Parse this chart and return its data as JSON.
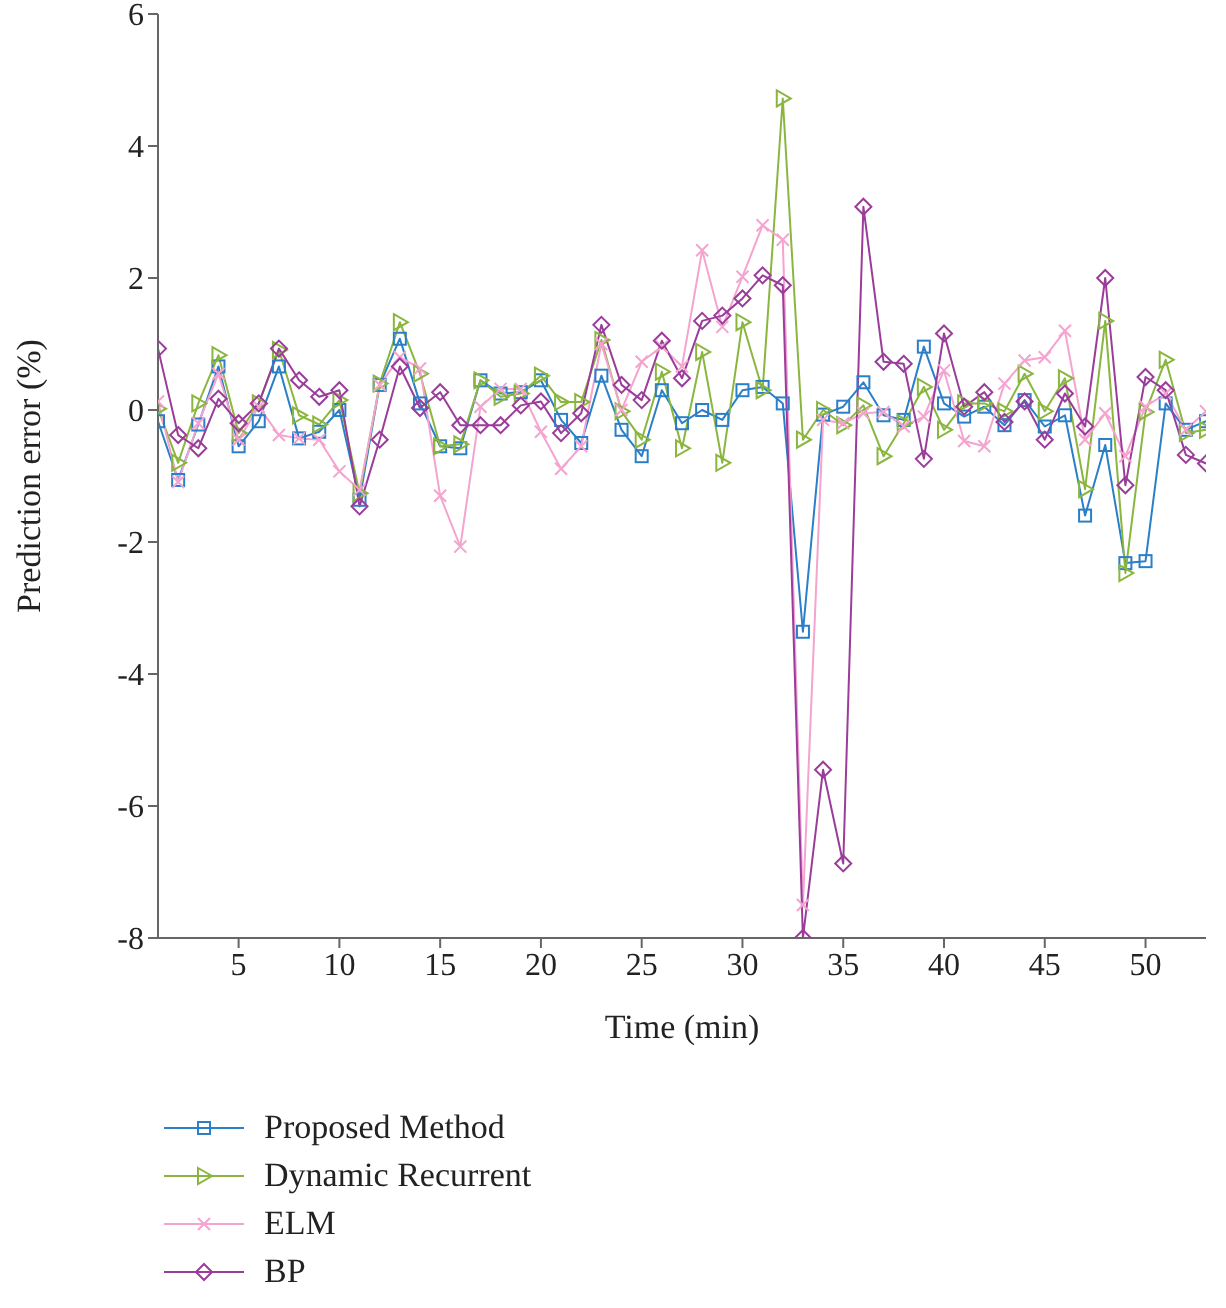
{
  "chart_data": {
    "type": "line",
    "xlabel": "Time (min)",
    "ylabel": "Prediction error (%)",
    "x": [
      1,
      2,
      3,
      4,
      5,
      6,
      7,
      8,
      9,
      10,
      11,
      12,
      13,
      14,
      15,
      16,
      17,
      18,
      19,
      20,
      21,
      22,
      23,
      24,
      25,
      26,
      27,
      28,
      29,
      30,
      31,
      32,
      33,
      34,
      35,
      36,
      37,
      38,
      39,
      40,
      41,
      42,
      43,
      44,
      45,
      46,
      47,
      48,
      49,
      50,
      51,
      52,
      53
    ],
    "xlim": [
      1,
      53
    ],
    "xticks": [
      5,
      10,
      15,
      20,
      25,
      30,
      35,
      40,
      45,
      50
    ],
    "ylim": [
      -8,
      6
    ],
    "yticks": [
      -8,
      -6,
      -4,
      -2,
      0,
      2,
      4,
      6
    ],
    "legend": "bottom left",
    "series": [
      {
        "name": "Proposed Method",
        "color": "#2a7fc8",
        "marker": "square",
        "values": [
          -0.17,
          -1.06,
          -0.22,
          0.66,
          -0.55,
          -0.17,
          0.66,
          -0.43,
          -0.33,
          0,
          -1.36,
          0.38,
          1.08,
          0.1,
          -0.55,
          -0.58,
          0.45,
          0.25,
          0.27,
          0.45,
          -0.15,
          -0.5,
          0.52,
          -0.3,
          -0.7,
          0.3,
          -0.2,
          0,
          -0.15,
          0.3,
          0.35,
          0.1,
          -3.36,
          -0.07,
          0.05,
          0.42,
          -0.08,
          -0.15,
          0.96,
          0.1,
          -0.1,
          0.05,
          -0.23,
          0.15,
          -0.25,
          -0.08,
          -1.6,
          -0.53,
          -2.32,
          -2.29,
          0.1,
          -0.3,
          -0.17
        ]
      },
      {
        "name": "Dynamic Recurrent",
        "color": "#8ab63f",
        "marker": "triangle",
        "values": [
          0.02,
          -0.8,
          0.1,
          0.83,
          -0.35,
          0.1,
          0.91,
          -0.08,
          -0.22,
          0.15,
          -1.26,
          0.4,
          1.33,
          0.55,
          -0.55,
          -0.52,
          0.45,
          0.2,
          0.25,
          0.52,
          0.12,
          0.12,
          1.06,
          -0.02,
          -0.45,
          0.58,
          -0.58,
          0.88,
          -0.8,
          1.33,
          0.3,
          4.72,
          -0.45,
          0,
          -0.23,
          0.07,
          -0.7,
          -0.2,
          0.35,
          -0.3,
          0.1,
          0.1,
          -0.02,
          0.55,
          -0.02,
          0.48,
          -1.2,
          1.35,
          -2.47,
          -0.03,
          0.76,
          -0.35,
          -0.3
        ]
      },
      {
        "name": "ELM",
        "color": "#f5a3cf",
        "marker": "cross",
        "values": [
          0.13,
          -1.09,
          -0.2,
          0.55,
          -0.45,
          0.05,
          -0.38,
          -0.43,
          -0.45,
          -0.93,
          -1.21,
          0.38,
          0.8,
          0.63,
          -1.3,
          -2.07,
          0.05,
          0.32,
          0.32,
          -0.33,
          -0.89,
          -0.55,
          1.0,
          0,
          0.73,
          0.96,
          0.66,
          2.42,
          1.26,
          2.02,
          2.8,
          2.58,
          -7.5,
          -0.15,
          -0.2,
          -0.05,
          -0.03,
          -0.25,
          -0.1,
          0.6,
          -0.47,
          -0.55,
          0.4,
          0.75,
          0.8,
          1.2,
          -0.45,
          -0.05,
          -0.7,
          0.05,
          0.25,
          -0.3,
          -0.02
        ]
      },
      {
        "name": "BP",
        "color": "#9a3d9a",
        "marker": "diamond",
        "values": [
          0.93,
          -0.38,
          -0.58,
          0.17,
          -0.2,
          0.1,
          0.93,
          0.45,
          0.2,
          0.3,
          -1.46,
          -0.45,
          0.66,
          0.03,
          0.27,
          -0.23,
          -0.23,
          -0.23,
          0.07,
          0.13,
          -0.35,
          -0.05,
          1.29,
          0.38,
          0.15,
          1.05,
          0.48,
          1.35,
          1.43,
          1.69,
          2.04,
          1.89,
          -8.0,
          -5.45,
          -6.87,
          3.08,
          0.73,
          0.7,
          -0.74,
          1.16,
          0.05,
          0.27,
          -0.18,
          0.13,
          -0.45,
          0.25,
          -0.25,
          2.0,
          -1.14,
          0.5,
          0.3,
          -0.68,
          -0.81
        ]
      }
    ]
  }
}
